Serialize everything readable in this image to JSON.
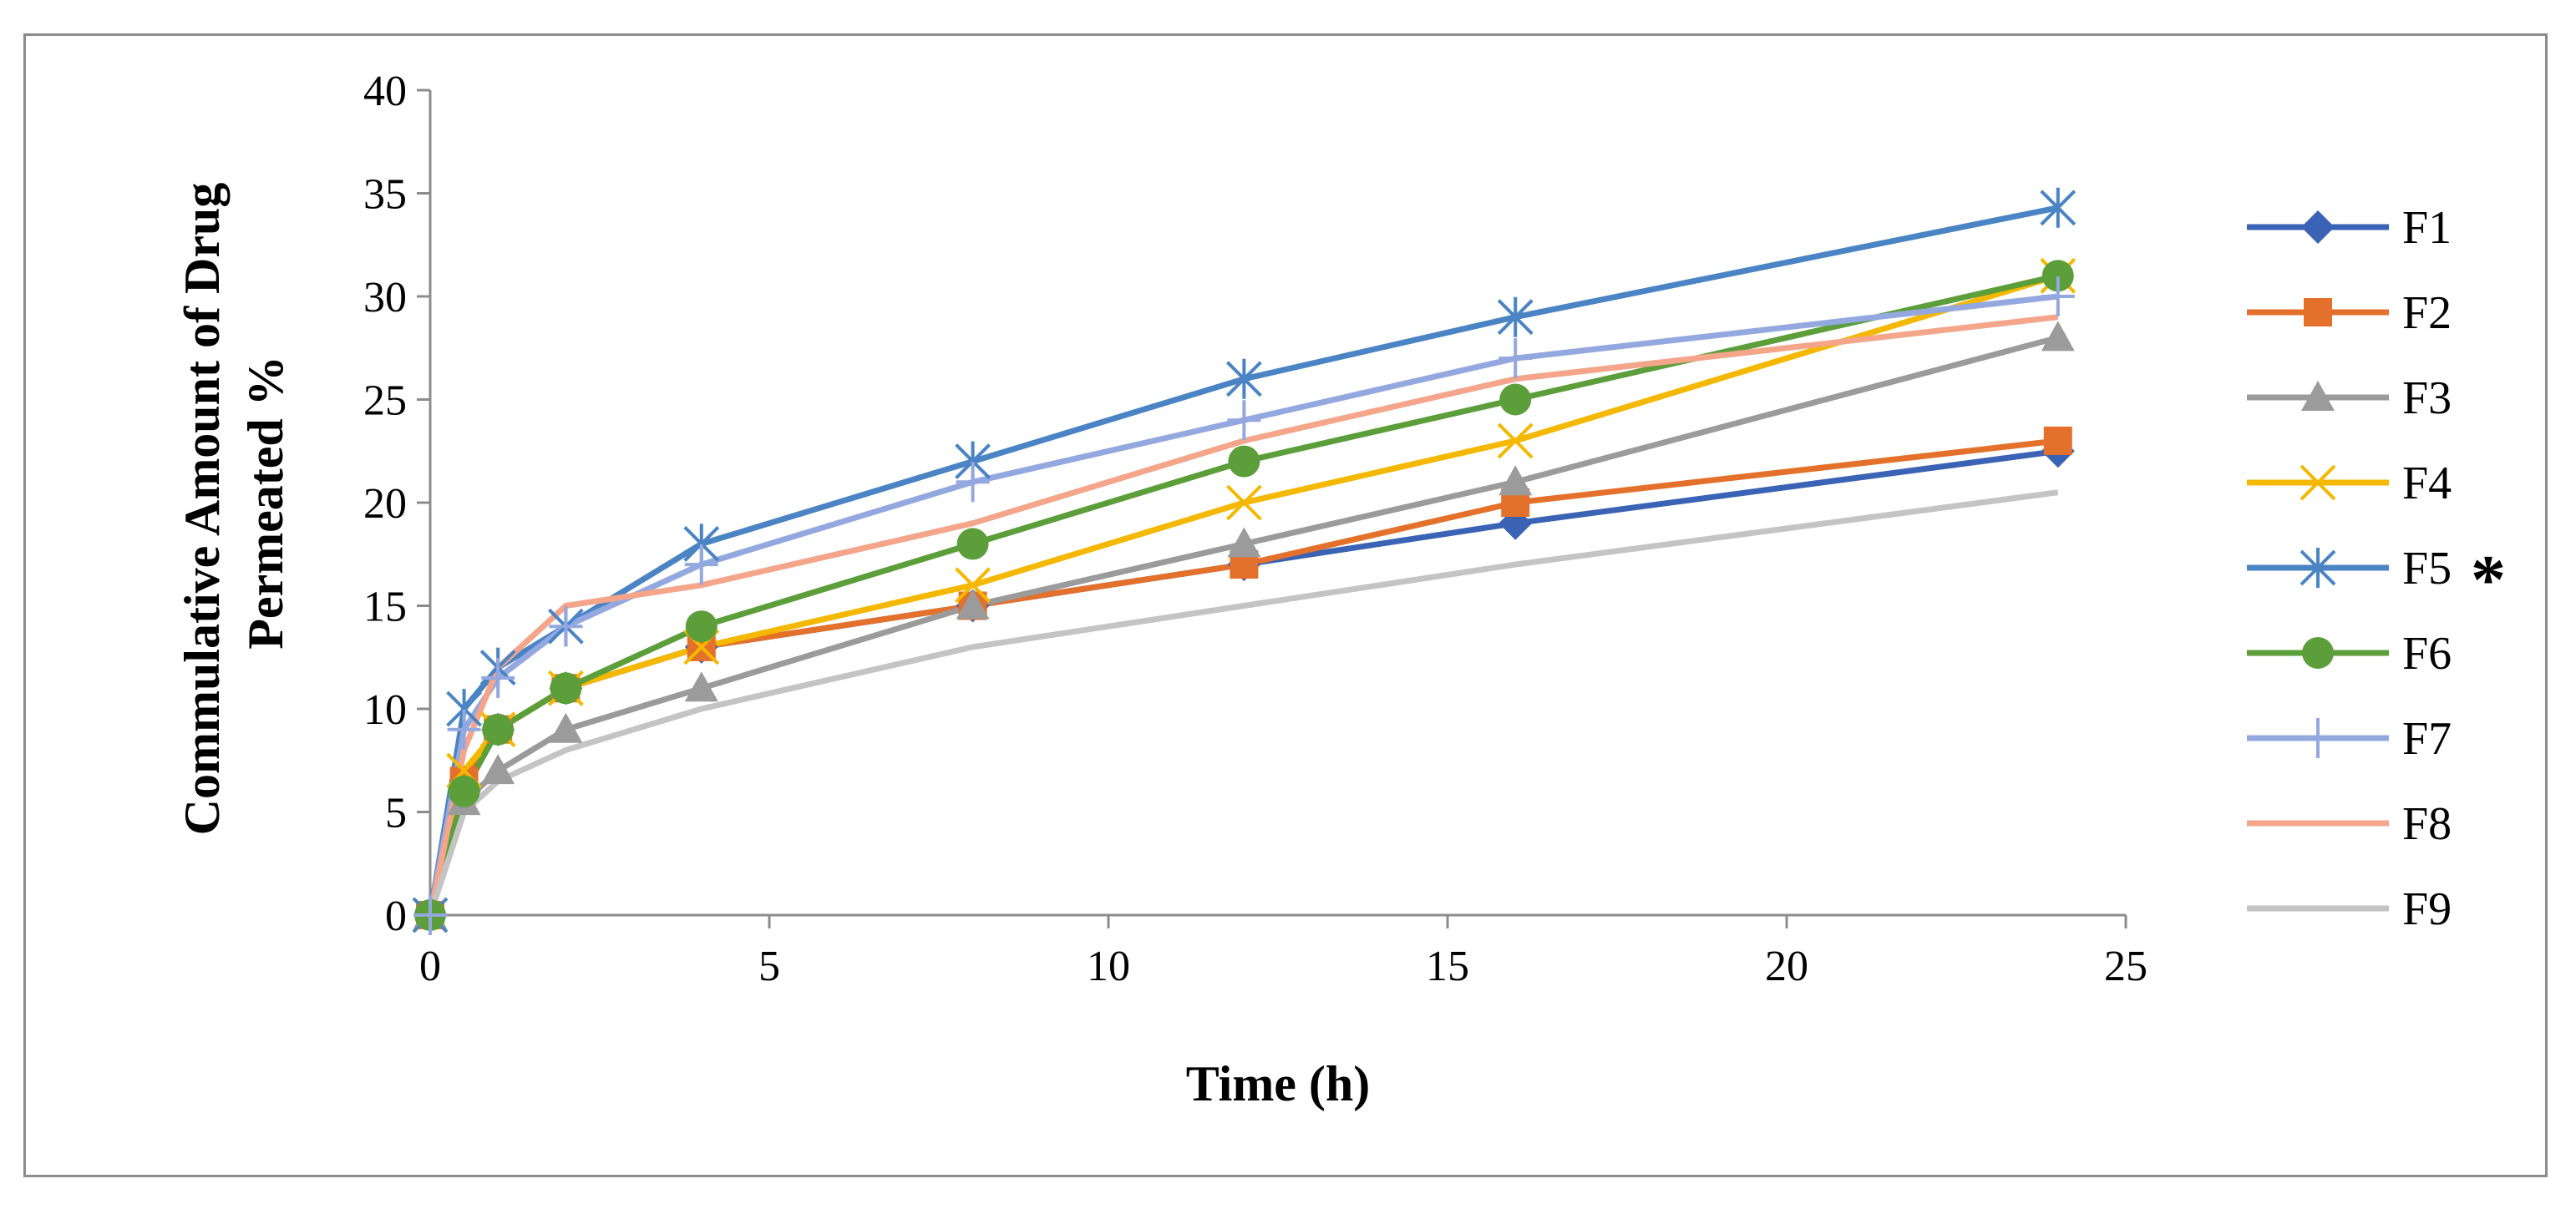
{
  "chart_data": {
    "type": "line",
    "title": "",
    "xlabel": "Time (h)",
    "ylabel": [
      "Commulative Amount of Drug",
      "Permeated %"
    ],
    "xlim": [
      0,
      25
    ],
    "ylim": [
      0,
      40
    ],
    "xticks": [
      0,
      5,
      10,
      15,
      20,
      25
    ],
    "yticks": [
      0,
      5,
      10,
      15,
      20,
      25,
      30,
      35,
      40
    ],
    "legend_position": "right",
    "annotation": "*",
    "x": [
      0,
      0.5,
      1,
      2,
      4,
      8,
      12,
      16,
      24
    ],
    "series": [
      {
        "name": "F1",
        "color": "#3b63b5",
        "marker": "diamond",
        "values": [
          0,
          6,
          9,
          11,
          13,
          15,
          17,
          19,
          22.5
        ]
      },
      {
        "name": "F2",
        "color": "#e4712b",
        "marker": "square",
        "values": [
          0,
          6.5,
          9,
          11,
          13,
          15,
          17,
          20,
          23
        ]
      },
      {
        "name": "F3",
        "color": "#9b9b9b",
        "marker": "triangle",
        "values": [
          0,
          5.5,
          7,
          9,
          11,
          15,
          18,
          21,
          28
        ]
      },
      {
        "name": "F4",
        "color": "#f5b800",
        "marker": "x",
        "values": [
          0,
          7,
          9,
          11,
          13,
          16,
          20,
          23,
          31
        ]
      },
      {
        "name": "F5",
        "color": "#4a84c4",
        "marker": "asterisk",
        "values": [
          0,
          10,
          12,
          14,
          18,
          22,
          26,
          29,
          34.3
        ]
      },
      {
        "name": "F6",
        "color": "#5b9e3a",
        "marker": "circle",
        "values": [
          0,
          6,
          9,
          11,
          14,
          18,
          22,
          25,
          31
        ]
      },
      {
        "name": "F7",
        "color": "#94a8e0",
        "marker": "plus",
        "values": [
          0,
          9,
          11.5,
          14,
          17,
          21,
          24,
          27,
          30
        ]
      },
      {
        "name": "F8",
        "color": "#f4a58a",
        "marker": "none",
        "values": [
          0,
          8,
          12,
          15,
          16,
          19,
          23,
          26,
          29
        ]
      },
      {
        "name": "F9",
        "color": "#c4c4c4",
        "marker": "none",
        "values": [
          0,
          5,
          6.5,
          8,
          10,
          13,
          15,
          17,
          20.5
        ]
      }
    ]
  }
}
